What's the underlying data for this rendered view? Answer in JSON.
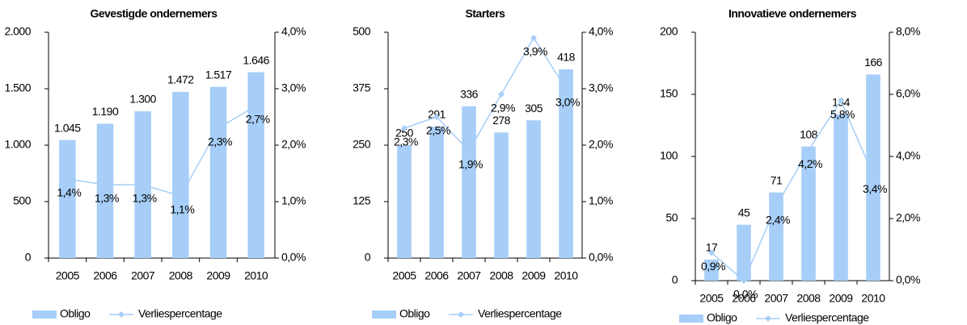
{
  "chart_data": [
    {
      "type": "bar_line",
      "title": "Gevestigde ondernemers",
      "categories": [
        "2005",
        "2006",
        "2007",
        "2008",
        "2009",
        "2010"
      ],
      "series": [
        {
          "name": "Obligo",
          "color": "#a6cef8",
          "values": [
            1045,
            1190,
            1300,
            1472,
            1517,
            1646
          ],
          "value_labels": [
            "1.045",
            "1.190",
            "1.300",
            "1.472",
            "1.517",
            "1.646"
          ]
        },
        {
          "name": "Verliespercentage",
          "color": "#a6cef8",
          "axis": "y2",
          "values": [
            1.4,
            1.3,
            1.3,
            1.1,
            2.3,
            2.7
          ],
          "value_labels": [
            "1,4%",
            "1,3%",
            "1,3%",
            "1,1%",
            "2,3%",
            "2,7%"
          ]
        }
      ],
      "ylim": [
        0,
        2000
      ],
      "yticks": [
        0,
        500,
        {
          "value": 1000,
          "label": "1.000"
        },
        {
          "value": 1500,
          "label": "1.500"
        },
        {
          "value": 2000,
          "label": "2.000"
        }
      ],
      "y2lim": [
        0,
        4
      ],
      "y2ticks": [
        {
          "value": 0,
          "label": "0,0%"
        },
        {
          "value": 1,
          "label": "1,0%"
        },
        {
          "value": 2,
          "label": "2,0%"
        },
        {
          "value": 3,
          "label": "3,0%"
        },
        {
          "value": 4,
          "label": "4,0%"
        }
      ]
    },
    {
      "type": "bar_line",
      "title": "Starters",
      "categories": [
        "2005",
        "2006",
        "2007",
        "2008",
        "2009",
        "2010"
      ],
      "series": [
        {
          "name": "Obligo",
          "color": "#a6cef8",
          "values": [
            250,
            291,
            336,
            278,
            305,
            418
          ]
        },
        {
          "name": "Verliespercentage",
          "color": "#a6cef8",
          "axis": "y2",
          "values": [
            2.3,
            2.5,
            1.9,
            2.9,
            3.9,
            3.0
          ],
          "value_labels": [
            "2,3%",
            "2,5%",
            "1,9%",
            "2,9%",
            "3,9%",
            "3,0%"
          ]
        }
      ],
      "ylim": [
        0,
        500
      ],
      "yticks": [
        0,
        125,
        250,
        375,
        500
      ],
      "y2lim": [
        0,
        4
      ],
      "y2ticks": [
        {
          "value": 0,
          "label": "0,0%"
        },
        {
          "value": 1,
          "label": "1,0%"
        },
        {
          "value": 2,
          "label": "2,0%"
        },
        {
          "value": 3,
          "label": "3,0%"
        },
        {
          "value": 4,
          "label": "4,0%"
        }
      ]
    },
    {
      "type": "bar_line",
      "title": "Innovatieve ondernemers",
      "categories": [
        "2005",
        "2006",
        "2007",
        "2008",
        "2009",
        "2010"
      ],
      "series": [
        {
          "name": "Obligo",
          "color": "#a6cef8",
          "values": [
            17,
            45,
            71,
            108,
            134,
            166
          ]
        },
        {
          "name": "Verliespercentage",
          "color": "#a6cef8",
          "axis": "y2",
          "values": [
            0.9,
            0.0,
            2.4,
            4.2,
            5.8,
            3.4
          ],
          "value_labels": [
            "0,9%",
            "0,0%",
            "2,4%",
            "4,2%",
            "5,8%",
            "3,4%"
          ]
        }
      ],
      "ylim": [
        0,
        200
      ],
      "yticks": [
        0,
        50,
        100,
        150,
        200
      ],
      "y2lim": [
        0,
        8
      ],
      "y2ticks": [
        {
          "value": 0,
          "label": "0,0%"
        },
        {
          "value": 2,
          "label": "2,0%"
        },
        {
          "value": 4,
          "label": "4,0%"
        },
        {
          "value": 6,
          "label": "6,0%"
        },
        {
          "value": 8,
          "label": "8,0%"
        }
      ]
    }
  ]
}
